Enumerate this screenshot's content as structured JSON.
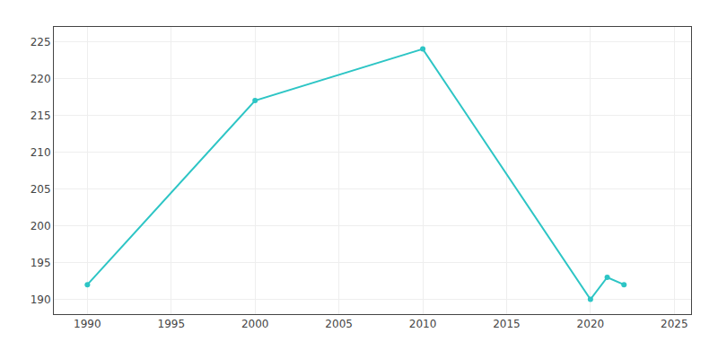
{
  "chart_data": {
    "type": "line",
    "x": [
      1990,
      2000,
      2010,
      2020,
      2021,
      2022
    ],
    "values": [
      192,
      217,
      224,
      190,
      193,
      192
    ],
    "color": "#2dc5c5",
    "marker": "circle",
    "xlim": [
      1988,
      2026
    ],
    "ylim": [
      188,
      227
    ],
    "xticks": [
      1990,
      1995,
      2000,
      2005,
      2010,
      2015,
      2020,
      2025
    ],
    "yticks": [
      190,
      195,
      200,
      205,
      210,
      215,
      220,
      225
    ],
    "grid": true
  }
}
